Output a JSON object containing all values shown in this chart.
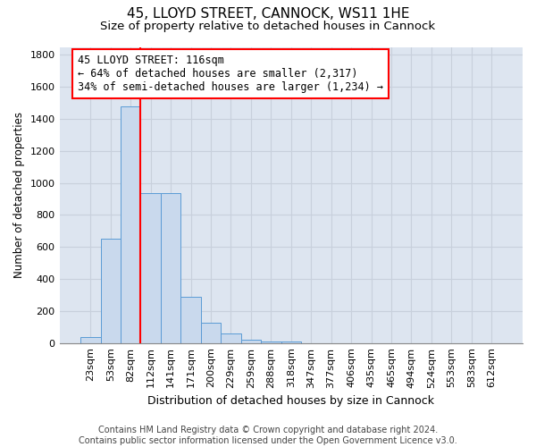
{
  "title1": "45, LLOYD STREET, CANNOCK, WS11 1HE",
  "title2": "Size of property relative to detached houses in Cannock",
  "xlabel": "Distribution of detached houses by size in Cannock",
  "ylabel": "Number of detached properties",
  "bin_labels": [
    "23sqm",
    "53sqm",
    "82sqm",
    "112sqm",
    "141sqm",
    "171sqm",
    "200sqm",
    "229sqm",
    "259sqm",
    "288sqm",
    "318sqm",
    "347sqm",
    "377sqm",
    "406sqm",
    "435sqm",
    "465sqm",
    "494sqm",
    "524sqm",
    "553sqm",
    "583sqm",
    "612sqm"
  ],
  "bar_values": [
    38,
    650,
    1480,
    935,
    935,
    290,
    125,
    60,
    22,
    12,
    10,
    0,
    0,
    0,
    0,
    0,
    0,
    0,
    0,
    0,
    0
  ],
  "bar_color": "#c9d9ed",
  "bar_edge_color": "#5b9bd5",
  "grid_color": "#c8d0dc",
  "background_color": "#dde5f0",
  "vline_color": "red",
  "vline_pos": 2.5,
  "annotation_text": "45 LLOYD STREET: 116sqm\n← 64% of detached houses are smaller (2,317)\n34% of semi-detached houses are larger (1,234) →",
  "annotation_box_color": "white",
  "annotation_box_edge": "red",
  "ylim": [
    0,
    1850
  ],
  "yticks": [
    0,
    200,
    400,
    600,
    800,
    1000,
    1200,
    1400,
    1600,
    1800
  ],
  "footer_text": "Contains HM Land Registry data © Crown copyright and database right 2024.\nContains public sector information licensed under the Open Government Licence v3.0.",
  "title1_fontsize": 11,
  "title2_fontsize": 9.5,
  "xlabel_fontsize": 9,
  "ylabel_fontsize": 8.5,
  "tick_fontsize": 8,
  "annotation_fontsize": 8.5,
  "footer_fontsize": 7
}
